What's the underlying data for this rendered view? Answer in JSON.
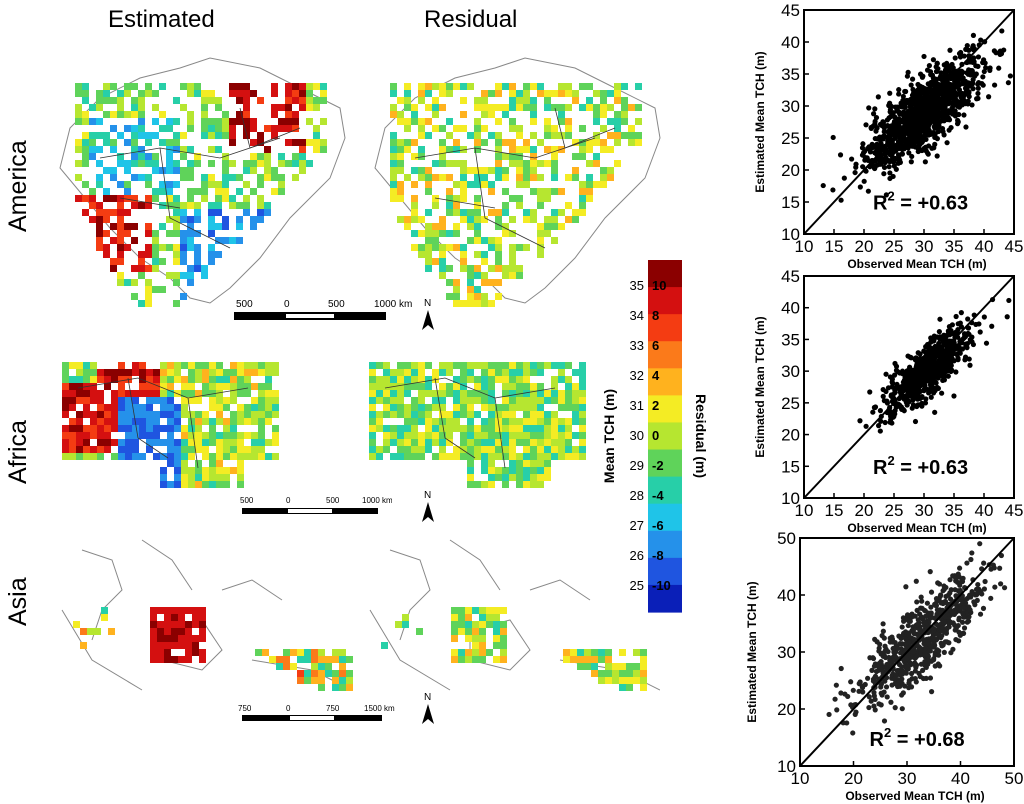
{
  "headers": {
    "estimated": "Estimated",
    "residual": "Residual"
  },
  "regions": [
    {
      "name": "America",
      "scale_ticks": [
        "500",
        "0",
        "500",
        "1000 km"
      ],
      "north": "N"
    },
    {
      "name": "Africa",
      "scale_ticks": [
        "500",
        "0",
        "500",
        "1000 km"
      ],
      "north": "N"
    },
    {
      "name": "Asia",
      "scale_ticks": [
        "750",
        "0",
        "750",
        "1500 km"
      ],
      "north": "N"
    }
  ],
  "colorbar": {
    "mean_label": "Mean TCH (m)",
    "residual_label": "Residual (m)",
    "mean_ticks": [
      "35",
      "34",
      "33",
      "32",
      "31",
      "30",
      "29",
      "28",
      "27",
      "26",
      "25"
    ],
    "residual_ticks": [
      "10",
      "8",
      "6",
      "4",
      "2",
      "0",
      "-2",
      "-4",
      "-6",
      "-8",
      "-10"
    ],
    "colors": [
      "#8b0000",
      "#d41010",
      "#f43c12",
      "#fb7a1a",
      "#ffb21e",
      "#f4ec24",
      "#b6e630",
      "#5fd35a",
      "#27cfa8",
      "#1fc4e8",
      "#2591ea",
      "#1f55e0",
      "#0a1fb8"
    ]
  },
  "chart_data": [
    {
      "type": "scatter",
      "region": "America",
      "xlabel": "Observed Mean TCH (m)",
      "ylabel": "Estimated Mean TCH (m)",
      "xlim": [
        10,
        45
      ],
      "ylim": [
        10,
        45
      ],
      "xticks": [
        "10",
        "15",
        "20",
        "25",
        "30",
        "35",
        "40",
        "45"
      ],
      "yticks": [
        "10",
        "15",
        "20",
        "25",
        "30",
        "35",
        "40",
        "45"
      ],
      "annotation": {
        "label": "R",
        "sup": "2",
        "value": " = +0.63"
      },
      "one_to_one_line": true,
      "point_count": 1100,
      "cloud": {
        "mean_observed": 30,
        "mean_estimated": 29,
        "sd_observed": 4.8,
        "sd_estimated": 4.5,
        "correlation": 0.79
      }
    },
    {
      "type": "scatter",
      "region": "Africa",
      "xlabel": "Observed Mean TCH (m)",
      "ylabel": "Estimated Mean TCH (m)",
      "xlim": [
        10,
        45
      ],
      "ylim": [
        10,
        45
      ],
      "xticks": [
        "10",
        "15",
        "20",
        "25",
        "30",
        "35",
        "40",
        "45"
      ],
      "yticks": [
        "10",
        "15",
        "20",
        "25",
        "30",
        "35",
        "40",
        "45"
      ],
      "annotation": {
        "label": "R",
        "sup": "2",
        "value": " = +0.63"
      },
      "one_to_one_line": true,
      "point_count": 700,
      "cloud": {
        "mean_observed": 30.5,
        "mean_estimated": 30,
        "sd_observed": 3.6,
        "sd_estimated": 3.3,
        "correlation": 0.79
      }
    },
    {
      "type": "scatter",
      "region": "Asia",
      "xlabel": "Observed Mean TCH (m)",
      "ylabel": "Estimated Mean TCH (m)",
      "xlim": [
        10,
        50
      ],
      "ylim": [
        10,
        50
      ],
      "xticks": [
        "10",
        "20",
        "30",
        "40",
        "50"
      ],
      "yticks": [
        "10",
        "20",
        "30",
        "40",
        "50"
      ],
      "annotation": {
        "label": "R",
        "sup": "2",
        "value": " = +0.68"
      },
      "one_to_one_line": true,
      "point_count": 650,
      "cloud": {
        "mean_observed": 33,
        "mean_estimated": 32.5,
        "sd_observed": 6,
        "sd_estimated": 5.8,
        "correlation": 0.82
      }
    }
  ]
}
